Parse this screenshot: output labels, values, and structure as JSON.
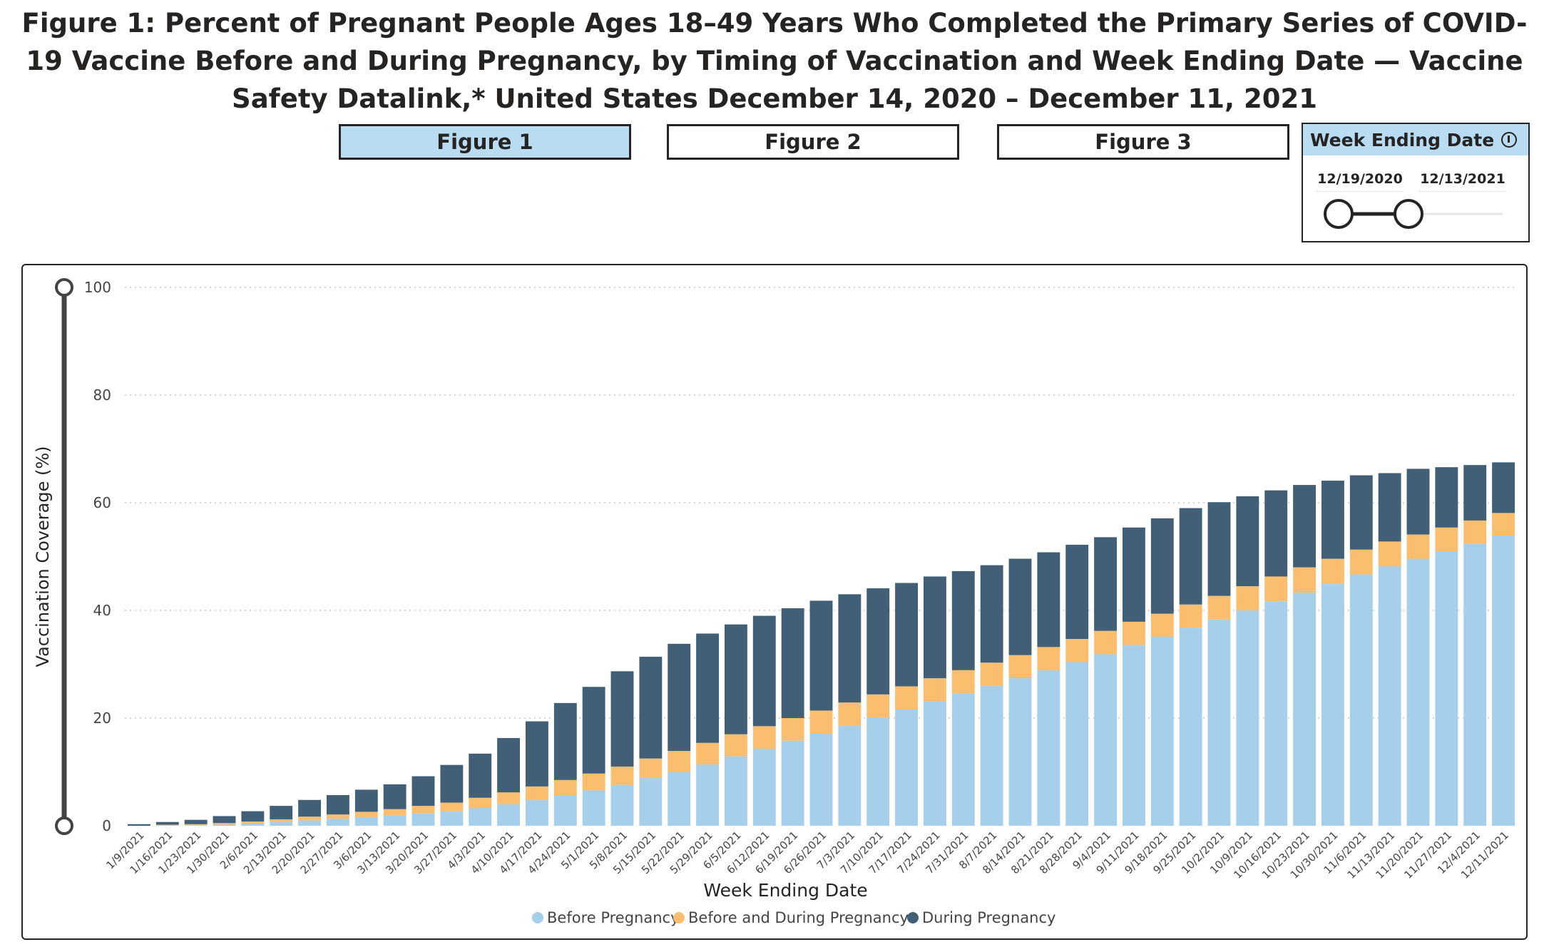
{
  "title": "Figure 1: Percent of Pregnant People Ages 18–49 Years Who Completed the Primary Series of COVID-19 Vaccine Before and During Pregnancy, by Timing of Vaccination and Week Ending Date — Vaccine Safety Datalink,* United States December 14, 2020 – December 11, 2021",
  "tabs": [
    {
      "label": "Figure 1",
      "active": true
    },
    {
      "label": "Figure 2",
      "active": false
    },
    {
      "label": "Figure 3",
      "active": false
    }
  ],
  "slicer": {
    "header": "Week Ending Date",
    "start_date": "12/19/2020",
    "end_date": "12/13/2021",
    "icon": "info-icon"
  },
  "colors": {
    "before": "#a6cfec",
    "before_during": "#fbbd6e",
    "during": "#415f76",
    "active_tab": "#b9dcf2"
  },
  "chart_data": {
    "type": "bar",
    "stacked": true,
    "title": "",
    "xlabel": "Week Ending Date",
    "ylabel": "Vaccination Coverage (%)",
    "ylim": [
      0,
      100
    ],
    "yticks": [
      0,
      20,
      40,
      60,
      80,
      100
    ],
    "grid": true,
    "legend_position": "bottom",
    "categories": [
      "1/9/2021",
      "1/16/2021",
      "1/23/2021",
      "1/30/2021",
      "2/6/2021",
      "2/13/2021",
      "2/20/2021",
      "2/27/2021",
      "3/6/2021",
      "3/13/2021",
      "3/20/2021",
      "3/27/2021",
      "4/3/2021",
      "4/10/2021",
      "4/17/2021",
      "4/24/2021",
      "5/1/2021",
      "5/8/2021",
      "5/15/2021",
      "5/22/2021",
      "5/29/2021",
      "6/5/2021",
      "6/12/2021",
      "6/19/2021",
      "6/26/2021",
      "7/3/2021",
      "7/10/2021",
      "7/17/2021",
      "7/24/2021",
      "7/31/2021",
      "8/7/2021",
      "8/14/2021",
      "8/21/2021",
      "8/28/2021",
      "9/4/2021",
      "9/11/2021",
      "9/18/2021",
      "9/25/2021",
      "10/2/2021",
      "10/9/2021",
      "10/16/2021",
      "10/23/2021",
      "10/30/2021",
      "11/6/2021",
      "11/13/2021",
      "11/20/2021",
      "11/27/2021",
      "12/4/2021",
      "12/11/2021"
    ],
    "series": [
      {
        "name": "Before Pregnancy",
        "color": "#a6cfec",
        "values": [
          0.0,
          0.1,
          0.1,
          0.2,
          0.4,
          0.7,
          1.0,
          1.3,
          1.6,
          1.9,
          2.3,
          2.7,
          3.3,
          4.0,
          4.8,
          5.7,
          6.6,
          7.6,
          8.9,
          10.0,
          11.4,
          12.9,
          14.3,
          15.8,
          17.1,
          18.6,
          20.1,
          21.6,
          23.1,
          24.6,
          26.0,
          27.4,
          28.9,
          30.4,
          31.9,
          33.6,
          35.1,
          36.8,
          38.3,
          40.0,
          41.7,
          43.3,
          45.0,
          46.7,
          48.2,
          49.6,
          51.0,
          52.4,
          53.9
        ]
      },
      {
        "name": "Before and During Pregnancy",
        "color": "#fbbd6e",
        "values": [
          0.0,
          0.1,
          0.2,
          0.3,
          0.4,
          0.5,
          0.7,
          0.8,
          1.0,
          1.2,
          1.4,
          1.6,
          1.9,
          2.2,
          2.5,
          2.8,
          3.1,
          3.4,
          3.6,
          3.9,
          4.0,
          4.1,
          4.2,
          4.2,
          4.3,
          4.3,
          4.3,
          4.3,
          4.3,
          4.3,
          4.3,
          4.3,
          4.3,
          4.3,
          4.3,
          4.3,
          4.3,
          4.3,
          4.4,
          4.5,
          4.6,
          4.7,
          4.6,
          4.6,
          4.6,
          4.5,
          4.4,
          4.3,
          4.2
        ]
      },
      {
        "name": "During Pregnancy",
        "color": "#415f76",
        "values": [
          0.3,
          0.5,
          0.8,
          1.3,
          1.9,
          2.5,
          3.1,
          3.6,
          4.1,
          4.6,
          5.5,
          7.0,
          8.2,
          10.1,
          12.1,
          14.3,
          16.1,
          17.7,
          18.9,
          19.9,
          20.3,
          20.4,
          20.5,
          20.4,
          20.4,
          20.1,
          19.7,
          19.2,
          18.9,
          18.4,
          18.1,
          17.9,
          17.6,
          17.5,
          17.4,
          17.5,
          17.7,
          17.9,
          17.4,
          16.7,
          16.0,
          15.3,
          14.5,
          13.8,
          12.7,
          12.2,
          11.2,
          10.3,
          9.4
        ]
      }
    ]
  }
}
